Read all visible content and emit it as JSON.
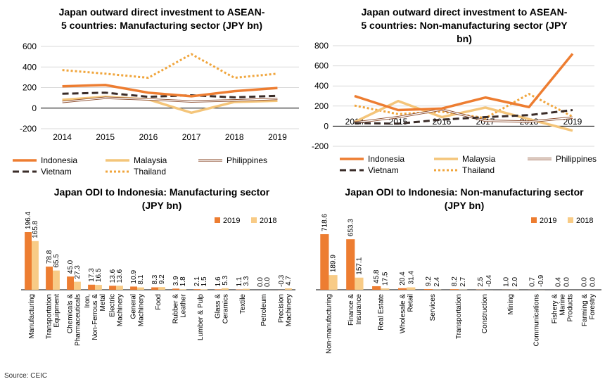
{
  "colors": {
    "indonesia": "#ED7D31",
    "malaysia": "#F4C57A",
    "philippines": "#8B4A2B",
    "vietnam": "#3A2C28",
    "thailand": "#F0A53C",
    "bar2019": "#ED7D31",
    "bar2018": "#F8CB86"
  },
  "source": "Source: CEIC",
  "chart_data": [
    {
      "type": "line",
      "title": "Japan outward direct investment to ASEAN-5 countries: Manufacturing sector (JPY bn)",
      "x": [
        "2014",
        "2015",
        "2016",
        "2017",
        "2018",
        "2019"
      ],
      "ylim": [
        -200,
        600
      ],
      "yticks": [
        "600",
        "400",
        "200",
        "0",
        "-200"
      ],
      "series": [
        {
          "name": "Indonesia",
          "values": [
            212,
            225,
            150,
            115,
            165,
            196
          ]
        },
        {
          "name": "Malaysia",
          "values": [
            80,
            110,
            85,
            -45,
            60,
            72
          ]
        },
        {
          "name": "Philippines",
          "values": [
            60,
            100,
            85,
            65,
            75,
            90
          ]
        },
        {
          "name": "Vietnam",
          "values": [
            140,
            150,
            110,
            125,
            105,
            120
          ]
        },
        {
          "name": "Thailand",
          "values": [
            370,
            335,
            295,
            525,
            295,
            335
          ]
        }
      ]
    },
    {
      "type": "line",
      "title": "Japan outward direct investment to ASEAN-5 countries: Non-manufacturing sector (JPY bn)",
      "x": [
        "2014",
        "2015",
        "2016",
        "2017",
        "2018",
        "2019"
      ],
      "ylim": [
        -200,
        800
      ],
      "yticks": [
        "800",
        "600",
        "400",
        "200",
        "0",
        "-200"
      ],
      "series": [
        {
          "name": "Indonesia",
          "values": [
            300,
            160,
            175,
            285,
            190,
            720
          ]
        },
        {
          "name": "Malaysia",
          "values": [
            40,
            250,
            90,
            185,
            70,
            -45
          ]
        },
        {
          "name": "Philippines",
          "values": [
            35,
            90,
            165,
            55,
            45,
            85
          ]
        },
        {
          "name": "Vietnam",
          "values": [
            30,
            25,
            65,
            90,
            110,
            160
          ]
        },
        {
          "name": "Thailand",
          "values": [
            205,
            120,
            145,
            80,
            320,
            95
          ]
        }
      ]
    },
    {
      "type": "bar",
      "title": "Japan ODI to Indonesia: Manufacturing sector (JPY bn)",
      "categories": [
        "Manufacturing",
        "Transportation Equipment",
        "Chemicals & Pharmaceuticals",
        "Iron, Non-Ferrous & Metal",
        "Electric Machinery",
        "General Machinery",
        "Food",
        "Rubber & Leather",
        "Lumber & Pulp",
        "Glass & Ceramics",
        "Textile",
        "Petroleum",
        "Precision Machinery"
      ],
      "series": [
        {
          "name": "2019",
          "values": [
            196.4,
            78.8,
            45.0,
            17.3,
            13.6,
            10.9,
            8.3,
            3.9,
            2.1,
            1.6,
            1.1,
            0.0,
            -0.3
          ]
        },
        {
          "name": "2018",
          "values": [
            165.8,
            65.5,
            27.3,
            16.5,
            13.6,
            8.1,
            9.2,
            1.8,
            1.5,
            5.3,
            3.3,
            0.0,
            4.7
          ]
        }
      ],
      "labels2019": [
        "196.4",
        "78.8",
        "45.0",
        "17.3",
        "13.6",
        "10.9",
        "8.3",
        "3.9",
        "2.1",
        "1.6",
        "1.1",
        "0.0",
        "-0.3"
      ],
      "labels2018": [
        "165.8",
        "65.5",
        "27.3",
        "16.5",
        "13.6",
        "8.1",
        "9.2",
        "1.8",
        "1.5",
        "5.3",
        "3.3",
        "0.0",
        "4.7"
      ],
      "legend": [
        "2019",
        "2018"
      ]
    },
    {
      "type": "bar",
      "title": "Japan ODI to Indonesia: Non-manufacturing sector (JPY bn)",
      "categories": [
        "Non-manufacturing",
        "Finance & Insurance",
        "Real Estate",
        "Wholesale & Retail",
        "Services",
        "Transportation",
        "Construction",
        "Mining",
        "Communications",
        "Fishery & Marine Products",
        "Farming & Forestry"
      ],
      "series": [
        {
          "name": "2019",
          "values": [
            718.6,
            653.3,
            45.8,
            20.4,
            9.2,
            8.2,
            2.5,
            1.0,
            0.7,
            0.4,
            0.0
          ]
        },
        {
          "name": "2018",
          "values": [
            189.9,
            157.1,
            17.5,
            31.4,
            2.4,
            2.7,
            -0.4,
            2.0,
            -0.9,
            0.0,
            0.0
          ]
        }
      ],
      "labels2019": [
        "718.6",
        "653.3",
        "45.8",
        "20.4",
        "9.2",
        "8.2",
        "2.5",
        "1.0",
        "0.7",
        "0.4",
        "0.0"
      ],
      "labels2018": [
        "189.9",
        "157.1",
        "17.5",
        "31.4",
        "2.4",
        "2.7",
        "-0.4",
        "2.0",
        "-0.9",
        "0.0",
        "0.0"
      ],
      "legend": [
        "2019",
        "2018"
      ]
    }
  ]
}
